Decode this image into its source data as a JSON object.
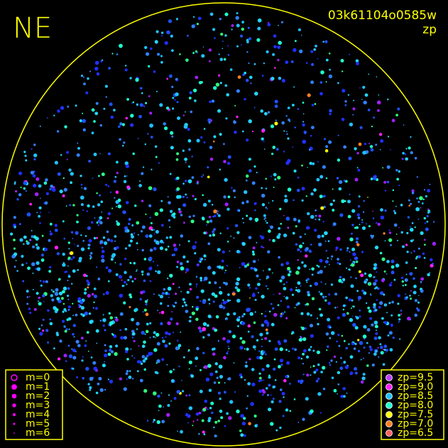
{
  "header": {
    "direction": "NE",
    "image_id": "03k61104o0585w",
    "mode": "zp"
  },
  "legend_magnitude": {
    "color": "#ff00ff",
    "items": [
      "m=0",
      "m=1",
      "m=2",
      "m=3",
      "m=4",
      "m=5",
      "m=6"
    ]
  },
  "legend_zeropoint": {
    "items": [
      {
        "label": "zp=9.5",
        "color": "#c040ff"
      },
      {
        "label": "zp=9.0",
        "color": "#ff20ff"
      },
      {
        "label": "zp=8.5",
        "color": "#20c0ff"
      },
      {
        "label": "zp=8.0",
        "color": "#20ffd0"
      },
      {
        "label": "zp=7.5",
        "color": "#ffff00"
      },
      {
        "label": "zp=7.0",
        "color": "#ff8020"
      },
      {
        "label": "zp=6.5",
        "color": "#ff6060"
      }
    ]
  }
}
